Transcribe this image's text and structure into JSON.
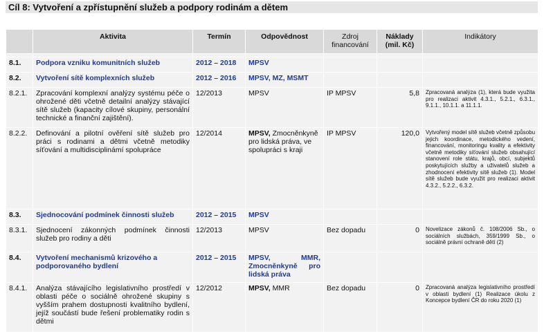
{
  "goal_title": "Cíl 8: Vytvoření a zpřístupnění služeb a podpory rodinám a dětem",
  "headers": {
    "aktivita": "Aktivita",
    "termin": "Termín",
    "odpovednost": "Odpovědnost",
    "zdroj": "Zdroj financování",
    "naklady": "Náklady (mil. Kč)",
    "indikatory": "Indikátory"
  },
  "rows": [
    {
      "id": "8.1.",
      "aktivita": "Podpora vzniku komunitních služeb",
      "termin": "2012 – 2018",
      "odpovednost": "MPSV",
      "zdroj": "",
      "naklady": "",
      "indikatory": ""
    },
    {
      "id": "8.2.",
      "aktivita": "Vytvoření sítě komplexních služeb",
      "termin": "2012 – 2016",
      "odpovednost": "MPSV, MZ, MSMT",
      "zdroj": "",
      "naklady": "",
      "indikatory": ""
    },
    {
      "id": "8.2.1.",
      "aktivita": "Zpracování komplexní analýzy systému péče o ohrožené děti včetně detailní analýzy stávající sítě služeb (kapacity cílové skupiny, personální technické a finanční zajištění).",
      "termin": "12/2013",
      "odpovednost": "MPSV",
      "zdroj": "IP MPSV",
      "naklady": "5,8",
      "indikatory": "Zpracovaná analýza (1), která bude využita pro realizaci aktivit 4.3.1., 5.2.1., 6.3.1., 9.1.1., 10.1.1. a 11.1.1."
    },
    {
      "id": "8.2.2.",
      "aktivita": "Definování a pilotní ověření sítě služeb pro práci s rodinami a dětmi včetně metodiky síťování a multidisciplinámí spolupráce",
      "termin": "12/2014",
      "odpovednost": "MPSV, Zmocněnkyně pro lidská práva, ve spolupráci s kraji",
      "zdroj": "IP MPSV",
      "naklady": "120,0",
      "indikatory": "Vytvořený model sítě služeb včetně způsobu jejich koordinace, metodického vedení, financování, monitoringu kvality a efektivity včetně metodiky síťování služeb obsahující stanovení role státu, krajů, obcí, subjektů poskytujících služby a uživatelů služeb a zhodnocení efektivity sítě služeb (1). Model sítě služeb bude využit pro realizaci aktivit 4.3.2., 5.2.2., 6.3.2."
    },
    {
      "id": "8.3.",
      "aktivita": "Sjednocování podmínek činnosti služeb",
      "termin": "2012 – 2015",
      "odpovednost": "MPSV",
      "zdroj": "",
      "naklady": "",
      "indikatory": ""
    },
    {
      "id": "8.3.1.",
      "aktivita": "Sjednocení zákonných podmínek činnosti služeb pro rodiny a děti",
      "termin": "12/2013",
      "odpovednost": "MPSV",
      "zdroj": "Bez dopadu",
      "naklady": "0",
      "indikatory": "Novelizace zákonů č. 108/2006 Sb., o sociálních službách, 359/1999 Sb., o sociálně právní ochraně dětí (2)"
    },
    {
      "id": "8.4.",
      "aktivita": "Vytvoření mechanismů krizového a podporovaného bydlení",
      "termin": "2012 – 2015",
      "odpovednost": "MPSV, MMR, Zmocněnkyně pro lidská práva",
      "zdroj": "",
      "naklady": "",
      "indikatory": ""
    },
    {
      "id": "8.4.1.",
      "aktivita": "Analýza stávajícího legislativního prostředí v oblasti péče o sociálně ohrožené skupiny s vyšším prahem dostupnosti kvalitního bydlení, jejíž součástí bude řešení problematiky rodin s dětmi",
      "termin": "12/2012",
      "odpovednost": "MPSV, MMR",
      "zdroj": "Bez dopadu",
      "naklady": "0",
      "indikatory": "Zpracovaná analýza legislativního prostředí v oblasti bydlení (1) Realizace úkolu z Koncepce bydlení ČR do roku 2020 (1)"
    }
  ]
}
